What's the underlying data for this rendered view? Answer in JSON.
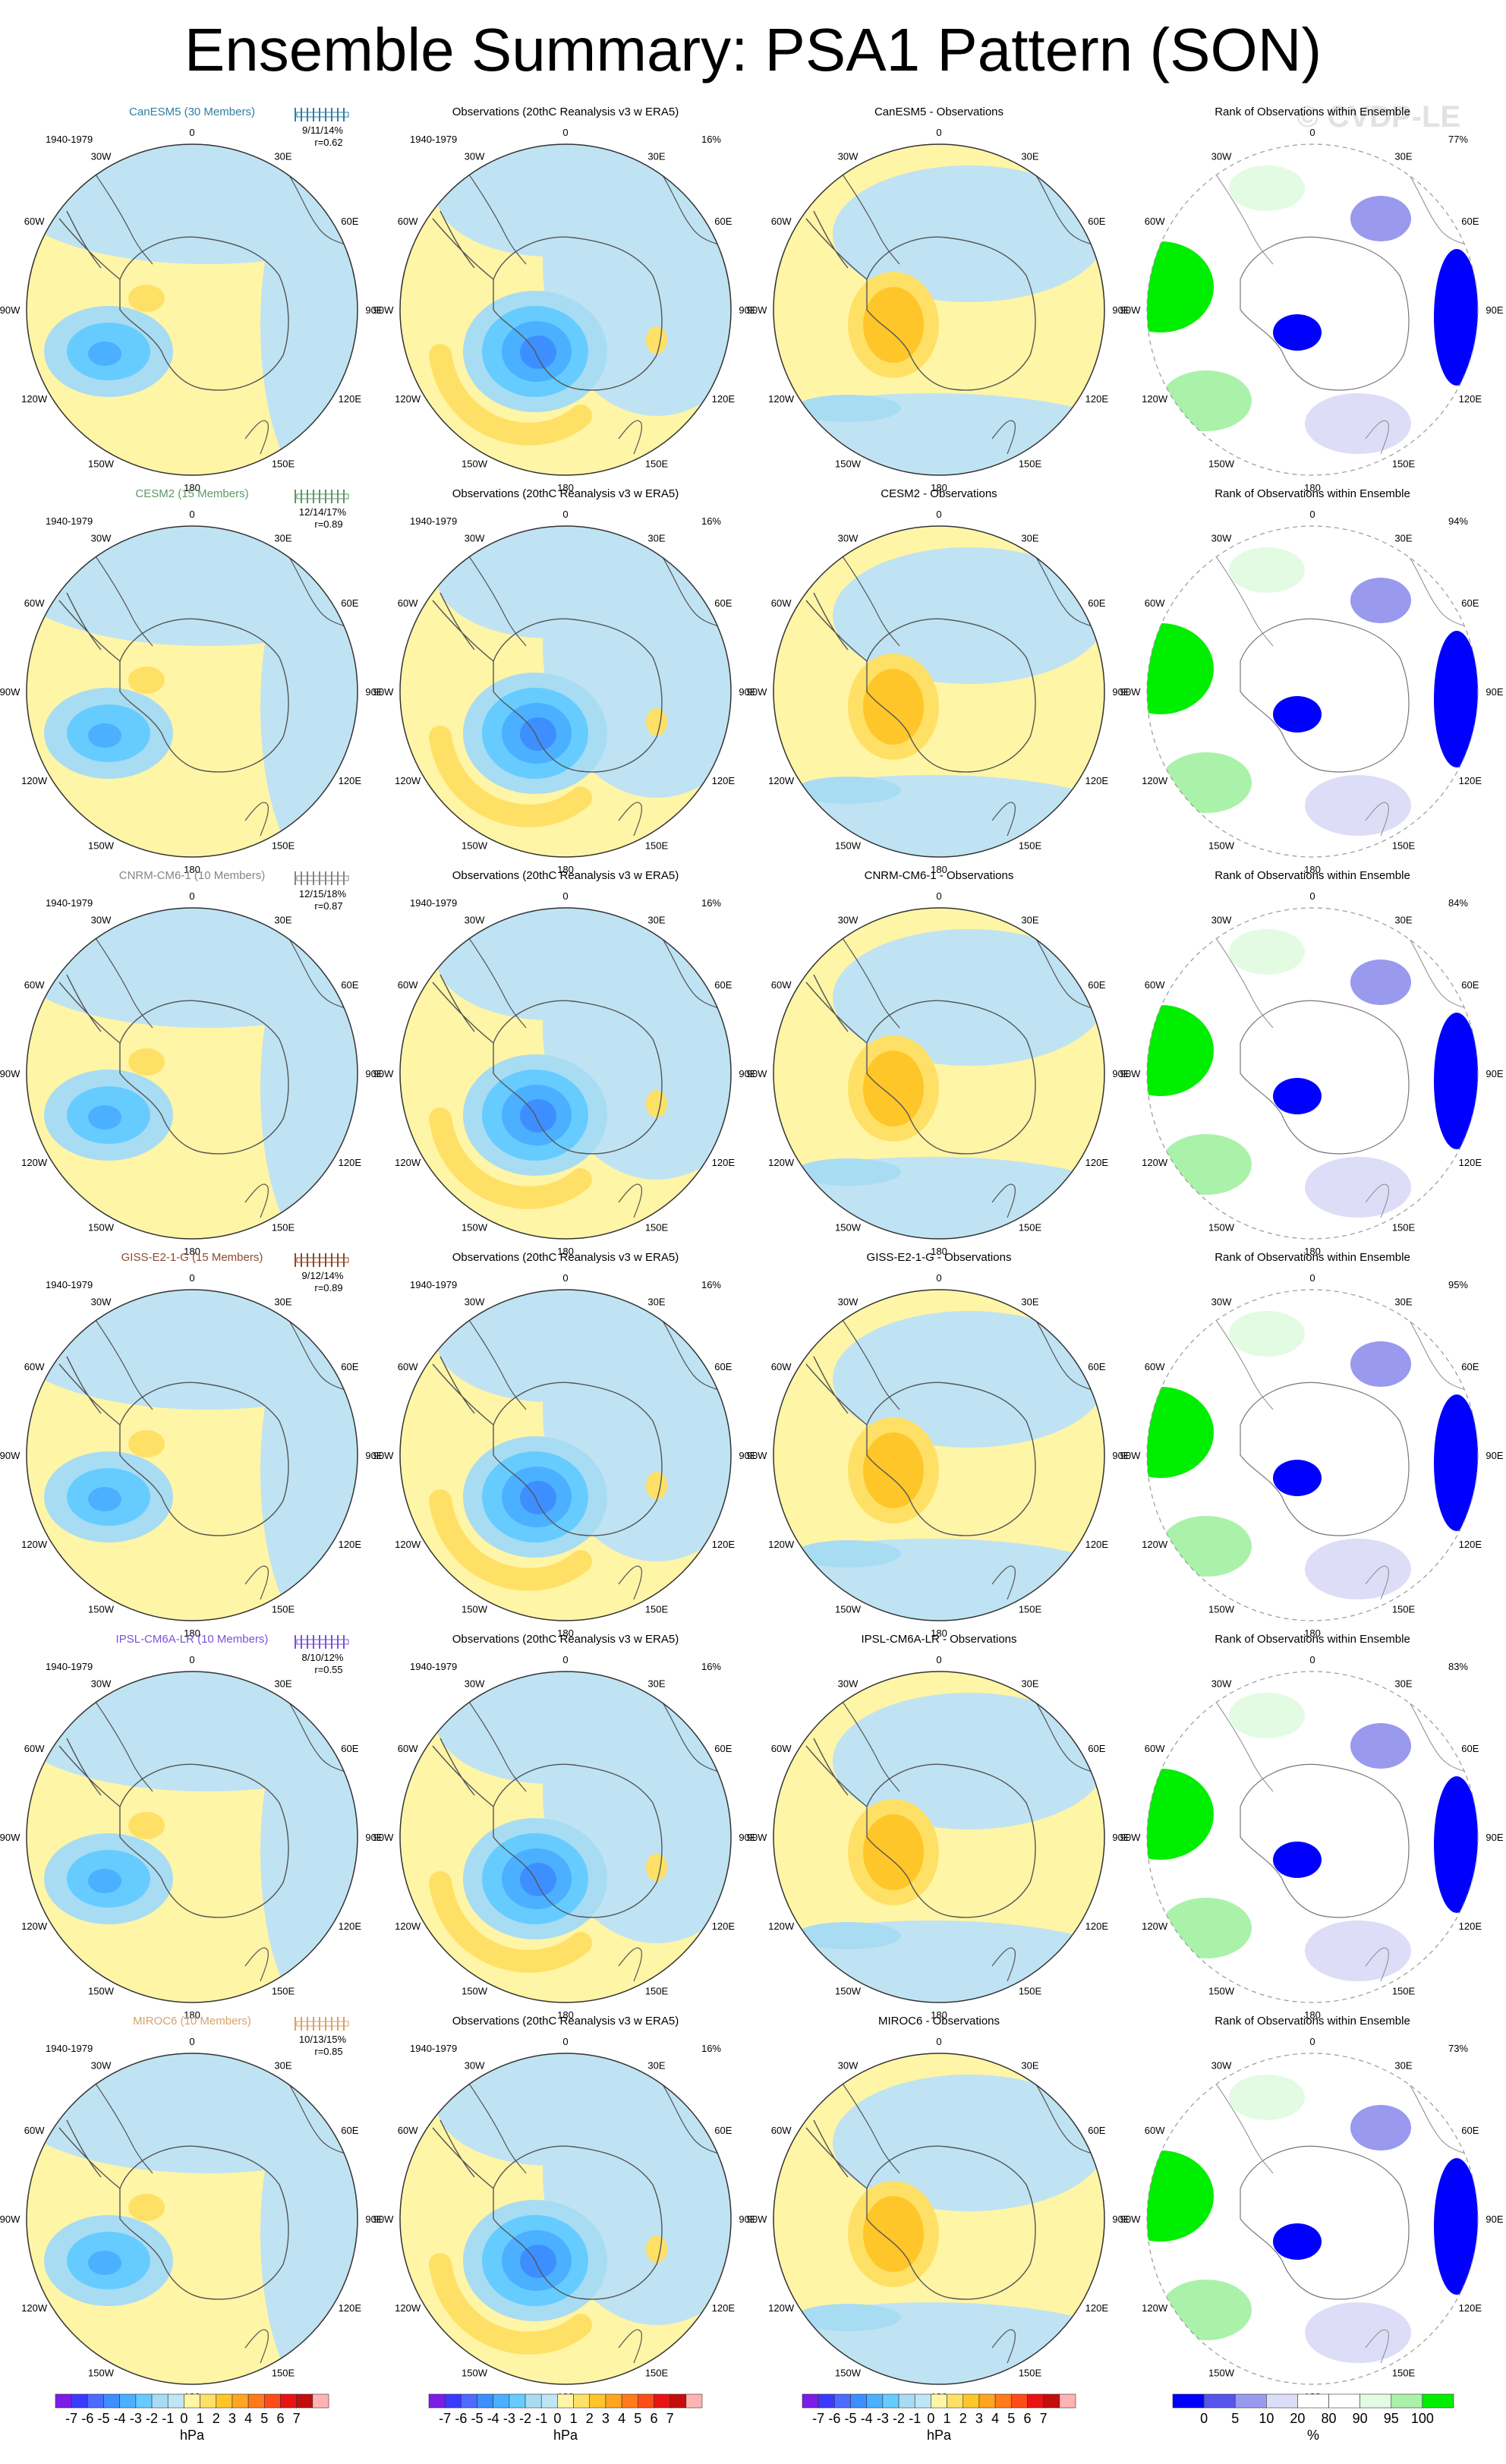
{
  "title": "Ensemble Summary: PSA1 Pattern (SON)",
  "watermark": "© CVDP-LE",
  "colors": {
    "model_names": [
      "#2f7ea3",
      "#5d9766",
      "#858585",
      "#8b4a2b",
      "#7a52d9",
      "#d6a36b"
    ],
    "pattern_scale": [
      "#7c1ce6",
      "#3a3aff",
      "#4d6cff",
      "#3d8fff",
      "#4ab0ff",
      "#66ccff",
      "#a8dcf3",
      "#bfe6f5",
      "#fff5a6",
      "#ffe066",
      "#ffc629",
      "#ffa51f",
      "#ff7a1a",
      "#ff4d1a",
      "#e81414",
      "#c40d0d",
      "#ffb3b3"
    ],
    "rank_scale": [
      "#0000ff",
      "#5555ee",
      "#9999ee",
      "#ddddf7",
      "#ffffff",
      "#ffffff",
      "#e2fbe2",
      "#aaf2aa",
      "#00ee00"
    ],
    "ocean": "#bfe3f3",
    "positive_region": "#fff5a6"
  },
  "chart_data": {
    "type": "heatmap",
    "grid": {
      "rows": 6,
      "columns": 4
    },
    "period": "1940-1979",
    "longitude_labels": [
      "0",
      "30E",
      "60E",
      "90E",
      "120E",
      "150E",
      "180",
      "150W",
      "120W",
      "90W",
      "60W",
      "30W"
    ],
    "column_titles": [
      "Observations (20thC Reanalysis v3 w ERA5)",
      "Rank of Observations within Ensemble"
    ],
    "observation_variance": "16%",
    "rows": [
      {
        "model": "CanESM5 (30 Members)",
        "model_stats": "9/11/14%",
        "model_r": "r=0.62",
        "difference_title": "CanESM5 - Observations",
        "rank_percent": "77%"
      },
      {
        "model": "CESM2 (15 Members)",
        "model_stats": "12/14/17%",
        "model_r": "r=0.89",
        "difference_title": "CESM2 - Observations",
        "rank_percent": "94%"
      },
      {
        "model": "CNRM-CM6-1 (10 Members)",
        "model_stats": "12/15/18%",
        "model_r": "r=0.87",
        "difference_title": "CNRM-CM6-1 - Observations",
        "rank_percent": "84%"
      },
      {
        "model": "GISS-E2-1-G (15 Members)",
        "model_stats": "9/12/14%",
        "model_r": "r=0.89",
        "difference_title": "GISS-E2-1-G - Observations",
        "rank_percent": "95%"
      },
      {
        "model": "IPSL-CM6A-LR (10 Members)",
        "model_stats": "8/10/12%",
        "model_r": "r=0.55",
        "difference_title": "IPSL-CM6A-LR - Observations",
        "rank_percent": "83%"
      },
      {
        "model": "MIROC6 (10 Members)",
        "model_stats": "10/13/15%",
        "model_r": "r=0.85",
        "difference_title": "MIROC6 - Observations",
        "rank_percent": "73%"
      }
    ],
    "pattern_colorbar": {
      "tick_labels": [
        "-7",
        "-6",
        "-5",
        "-4",
        "-3",
        "-2",
        "-1",
        "0",
        "1",
        "2",
        "3",
        "4",
        "5",
        "6",
        "7"
      ],
      "units": "hPa"
    },
    "rank_colorbar": {
      "tick_labels": [
        "0",
        "5",
        "10",
        "20",
        "80",
        "90",
        "95",
        "100"
      ],
      "units": "%"
    }
  }
}
